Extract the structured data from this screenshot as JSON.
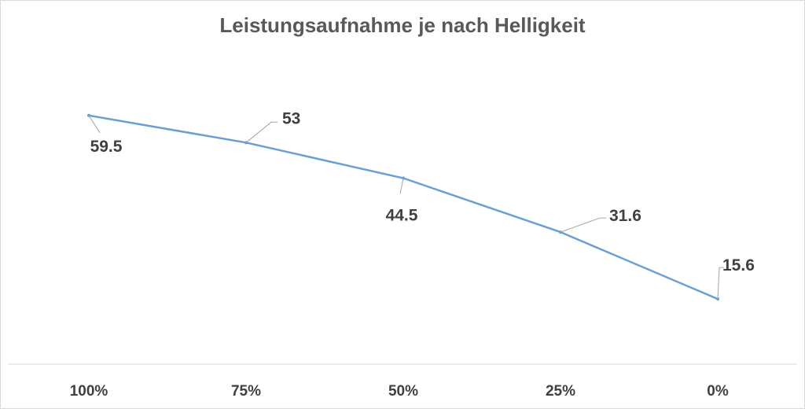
{
  "chart_data": {
    "type": "line",
    "title": "Leistungsaufnahme je nach Helligkeit",
    "xlabel": "",
    "ylabel": "",
    "categories": [
      "100%",
      "75%",
      "50%",
      "25%",
      "0%"
    ],
    "series": [
      {
        "values": [
          59.5,
          53,
          44.5,
          31.6,
          15.6
        ],
        "data_labels": [
          "59.5",
          "53",
          "44.5",
          "31.6",
          "15.6"
        ],
        "color": "#6a9fd4"
      }
    ],
    "ylim": [
      0,
      70
    ],
    "grid": false,
    "legend": "none",
    "axis_color": "#d9d9d9",
    "leader_line_color": "#a6a6a6"
  }
}
